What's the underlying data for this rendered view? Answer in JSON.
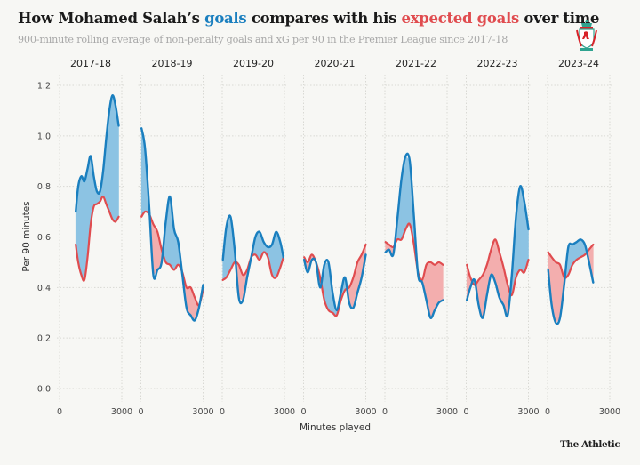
{
  "header": {
    "title_parts": [
      {
        "text": "How Mohamed Salah’s ",
        "role": "plain"
      },
      {
        "text": "goals",
        "role": "goals"
      },
      {
        "text": " compares with his ",
        "role": "plain"
      },
      {
        "text": "expected goals",
        "role": "xg"
      },
      {
        "text": " over time",
        "role": "plain"
      }
    ],
    "subtitle": "900-minute rolling average of non-penalty goals and xG per 90 in the Premier League since 2017-18",
    "logo": "liverpool-crest-icon"
  },
  "footer": {
    "brand": "The Athletic"
  },
  "colors": {
    "goals": "#1a7fbf",
    "xg": "#e04c4f",
    "goals_fill": "#8cc3e3",
    "xg_fill": "#f3aeae",
    "grid": "#d9d9d4",
    "background": "#f7f7f4"
  },
  "chart_data": {
    "type": "line",
    "title": "How Mohamed Salah’s goals compares with his expected goals over time",
    "subtitle": "900-minute rolling average of non-penalty goals and xG per 90 in the Premier League since 2017-18",
    "xlabel": "Minutes played",
    "ylabel": "Per 90 minutes",
    "ylim": [
      0,
      1.2
    ],
    "yticks": [
      "0.0",
      "0.2",
      "0.4",
      "0.6",
      "0.8",
      "1.0",
      "1.2"
    ],
    "yticks_values": [
      0,
      0.2,
      0.4,
      0.6,
      0.8,
      1.0,
      1.2
    ],
    "xlim": [
      0,
      3000
    ],
    "xticks": [
      "0",
      "3000"
    ],
    "grid": true,
    "fill_between": "shaded blue where goals > xG, red where xG > goals",
    "panels": [
      {
        "season": "2017-18",
        "minutes": [
          780,
          900,
          1050,
          1200,
          1350,
          1500,
          1650,
          1800,
          1950,
          2100,
          2250,
          2400,
          2550,
          2700,
          2850
        ],
        "goals": [
          0.7,
          0.8,
          0.84,
          0.82,
          0.87,
          0.92,
          0.84,
          0.78,
          0.78,
          0.86,
          0.99,
          1.1,
          1.16,
          1.12,
          1.04
        ],
        "xg": [
          0.57,
          0.5,
          0.45,
          0.43,
          0.52,
          0.65,
          0.72,
          0.73,
          0.74,
          0.76,
          0.73,
          0.7,
          0.67,
          0.66,
          0.68
        ]
      },
      {
        "season": "2018-19",
        "minutes": [
          30,
          200,
          400,
          600,
          800,
          1000,
          1200,
          1400,
          1600,
          1800,
          2000,
          2200,
          2400,
          2600,
          2800,
          3000
        ],
        "goals": [
          1.03,
          0.95,
          0.72,
          0.45,
          0.47,
          0.5,
          0.66,
          0.76,
          0.63,
          0.58,
          0.45,
          0.32,
          0.29,
          0.27,
          0.32,
          0.41
        ],
        "xg": [
          0.68,
          0.7,
          0.69,
          0.65,
          0.62,
          0.55,
          0.5,
          0.49,
          0.47,
          0.49,
          0.46,
          0.4,
          0.4,
          0.36,
          0.33,
          0.39
        ]
      },
      {
        "season": "2019-20",
        "minutes": [
          30,
          200,
          400,
          600,
          800,
          1000,
          1200,
          1400,
          1600,
          1800,
          2000,
          2200,
          2400,
          2600,
          2800,
          2950
        ],
        "goals": [
          0.51,
          0.64,
          0.68,
          0.55,
          0.36,
          0.35,
          0.44,
          0.52,
          0.6,
          0.62,
          0.58,
          0.56,
          0.57,
          0.62,
          0.58,
          0.52
        ],
        "xg": [
          0.43,
          0.44,
          0.47,
          0.5,
          0.49,
          0.45,
          0.47,
          0.52,
          0.53,
          0.51,
          0.54,
          0.52,
          0.45,
          0.44,
          0.48,
          0.52
        ]
      },
      {
        "season": "2020-21",
        "minutes": [
          30,
          200,
          400,
          600,
          800,
          1000,
          1200,
          1400,
          1600,
          1800,
          2000,
          2200,
          2400,
          2600,
          2800,
          3000
        ],
        "goals": [
          0.51,
          0.46,
          0.51,
          0.5,
          0.4,
          0.49,
          0.5,
          0.38,
          0.31,
          0.38,
          0.44,
          0.34,
          0.32,
          0.38,
          0.44,
          0.53
        ],
        "xg": [
          0.52,
          0.5,
          0.53,
          0.5,
          0.44,
          0.35,
          0.31,
          0.3,
          0.29,
          0.35,
          0.39,
          0.4,
          0.44,
          0.5,
          0.53,
          0.57
        ]
      },
      {
        "season": "2021-22",
        "minutes": [
          30,
          200,
          400,
          600,
          800,
          1000,
          1200,
          1400,
          1600,
          1800,
          2000,
          2200,
          2400,
          2600,
          2800
        ],
        "goals": [
          0.54,
          0.55,
          0.53,
          0.67,
          0.83,
          0.92,
          0.9,
          0.68,
          0.45,
          0.42,
          0.35,
          0.28,
          0.31,
          0.34,
          0.35
        ],
        "xg": [
          0.58,
          0.57,
          0.56,
          0.59,
          0.59,
          0.63,
          0.65,
          0.57,
          0.46,
          0.43,
          0.49,
          0.5,
          0.49,
          0.5,
          0.49
        ]
      },
      {
        "season": "2022-23",
        "minutes": [
          30,
          200,
          400,
          600,
          800,
          1000,
          1200,
          1400,
          1600,
          1800,
          2000,
          2200,
          2400,
          2600,
          2800,
          3000
        ],
        "goals": [
          0.35,
          0.4,
          0.43,
          0.33,
          0.28,
          0.37,
          0.45,
          0.42,
          0.36,
          0.33,
          0.29,
          0.45,
          0.68,
          0.8,
          0.74,
          0.63
        ],
        "xg": [
          0.49,
          0.44,
          0.41,
          0.43,
          0.45,
          0.49,
          0.55,
          0.59,
          0.54,
          0.48,
          0.41,
          0.37,
          0.44,
          0.47,
          0.46,
          0.51
        ]
      },
      {
        "season": "2023-24",
        "minutes": [
          30,
          200,
          400,
          600,
          800,
          1000,
          1200,
          1400,
          1600,
          1800,
          2000,
          2200
        ],
        "goals": [
          0.47,
          0.33,
          0.26,
          0.28,
          0.41,
          0.56,
          0.57,
          0.58,
          0.59,
          0.57,
          0.5,
          0.42
        ],
        "xg": [
          0.54,
          0.52,
          0.5,
          0.49,
          0.44,
          0.45,
          0.49,
          0.51,
          0.52,
          0.53,
          0.55,
          0.57
        ]
      }
    ]
  }
}
